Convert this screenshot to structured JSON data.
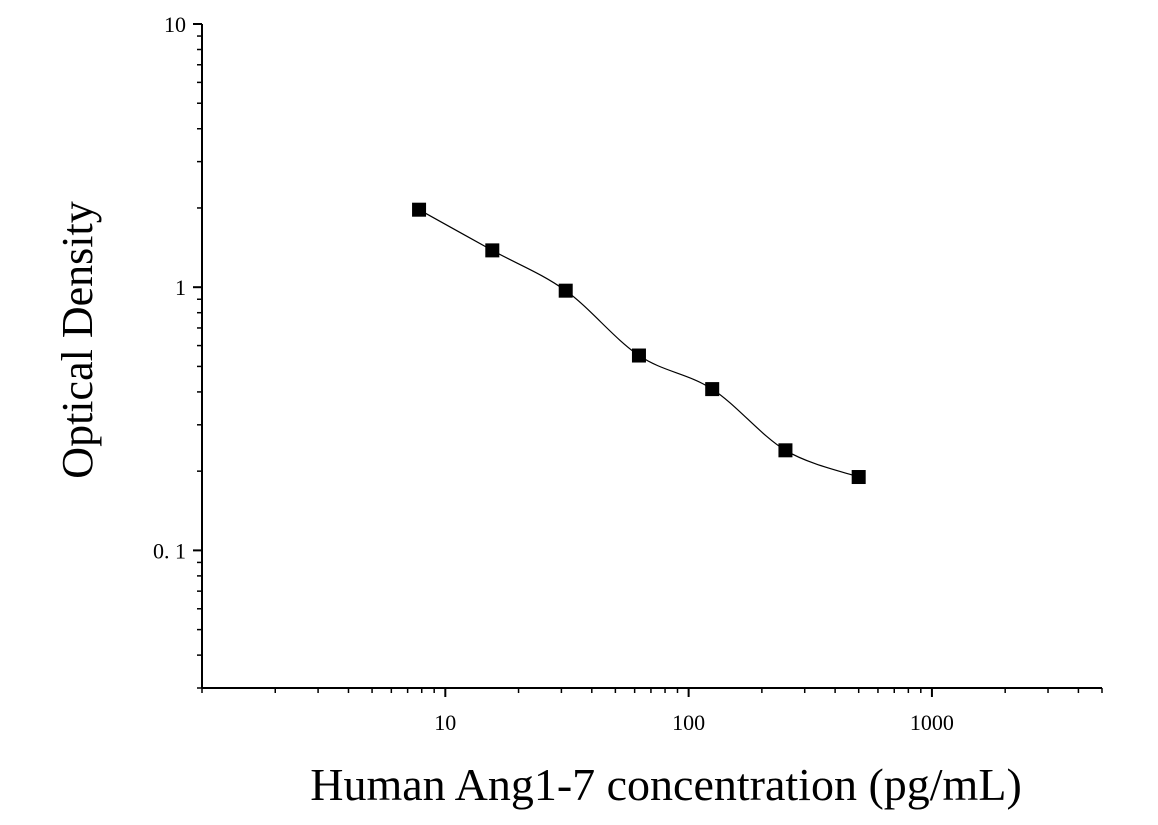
{
  "chart_data": {
    "type": "scatter",
    "title": "",
    "xlabel": "Human Ang1-7 concentration (pg/mL)",
    "ylabel": "Optical Density",
    "xscale": "log",
    "yscale": "log",
    "xlim": [
      1,
      5000
    ],
    "ylim": [
      0.03,
      10
    ],
    "x_ticks": [
      10,
      100,
      1000
    ],
    "x_tick_labels": [
      "10",
      "100",
      "1000"
    ],
    "y_ticks": [
      0.1,
      1,
      10
    ],
    "y_tick_labels": [
      "0. 1",
      "1",
      "10"
    ],
    "grid": false,
    "legend": "none",
    "marker": "square",
    "fit_curve": "smooth",
    "series": [
      {
        "x": [
          7.8,
          15.6,
          31.25,
          62.5,
          125,
          250,
          500
        ],
        "y": [
          1.97,
          1.38,
          0.97,
          0.55,
          0.41,
          0.24,
          0.19
        ]
      }
    ],
    "colors": {
      "marker": "#000000",
      "curve": "#000000",
      "axis": "#000000"
    }
  }
}
